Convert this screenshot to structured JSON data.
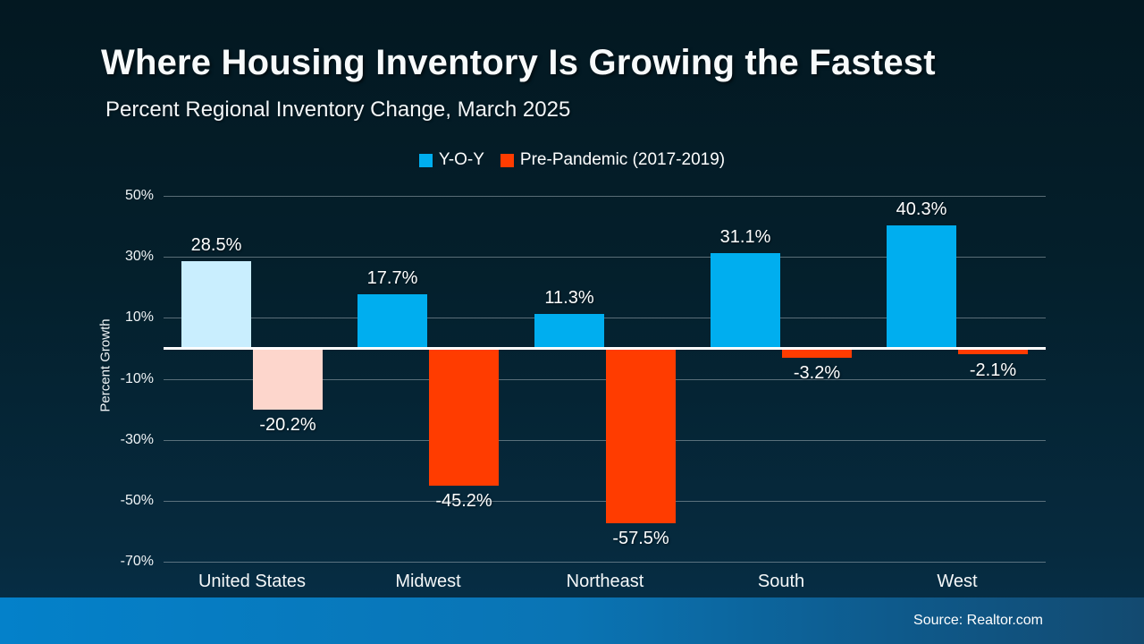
{
  "title": "Where Housing Inventory Is Growing the Fastest",
  "subtitle": "Percent Regional Inventory Change, March 2025",
  "source": "Source: Realtor.com",
  "colors": {
    "background_top": "#031821",
    "background_bottom": "#07304a",
    "yoy_bar": "#00aeef",
    "yoy_bar_highlight": "#c9eefe",
    "prepandemic_bar": "#ff3c00",
    "prepandemic_bar_highlight": "#fdd6cc",
    "zero_line": "#ffffff",
    "gridline": "#9badb5",
    "bottom_band_left": "#0481ca",
    "bottom_band_right": "#134a70"
  },
  "legend": {
    "items": [
      {
        "label": "Y-O-Y",
        "color": "#00aeef"
      },
      {
        "label": "Pre-Pandemic (2017-2019)",
        "color": "#ff3c00"
      }
    ]
  },
  "chart_data": {
    "type": "bar",
    "title": "Where Housing Inventory Is Growing the Fastest",
    "subtitle": "Percent Regional Inventory Change, March 2025",
    "categories": [
      "United States",
      "Midwest",
      "Northeast",
      "South",
      "West"
    ],
    "series": [
      {
        "name": "Y-O-Y",
        "color": "#00aeef",
        "highlight_color": "#c9eefe",
        "values": [
          28.5,
          17.7,
          11.3,
          31.1,
          40.3
        ],
        "labels": [
          "28.5%",
          "17.7%",
          "11.3%",
          "31.1%",
          "40.3%"
        ]
      },
      {
        "name": "Pre-Pandemic (2017-2019)",
        "color": "#ff3c00",
        "highlight_color": "#fdd6cc",
        "values": [
          -20.2,
          -45.2,
          -57.5,
          -3.2,
          -2.1
        ],
        "labels": [
          "-20.2%",
          "-45.2%",
          "-57.5%",
          "-3.2%",
          "-2.1%"
        ]
      }
    ],
    "highlight_category_index": 0,
    "xlabel": "",
    "ylabel": "Percent Growth",
    "ylim": [
      -70,
      50
    ],
    "yticks": [
      50,
      30,
      10,
      -10,
      -30,
      -50,
      -70
    ],
    "ytick_labels": [
      "50%",
      "30%",
      "10%",
      "-10%",
      "-30%",
      "-50%",
      "-70%"
    ],
    "grid": true,
    "legend_position": "top",
    "zero_line": true
  }
}
